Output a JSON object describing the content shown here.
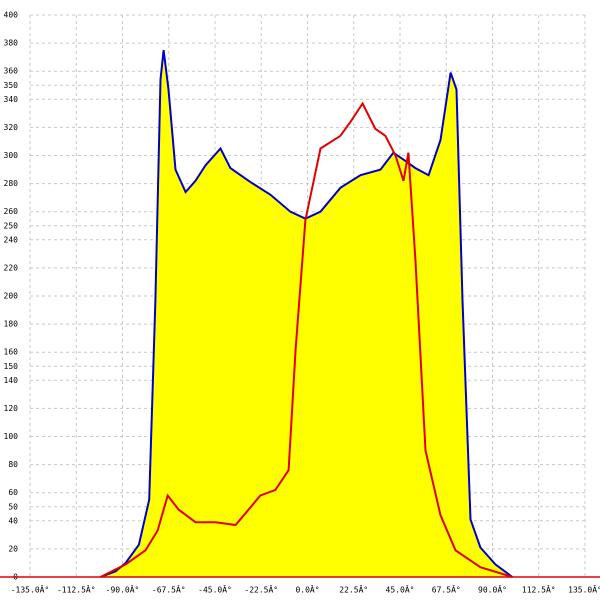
{
  "chart_data": {
    "type": "area",
    "xlim": [
      -135,
      135
    ],
    "xticks": [
      {
        "value": -135,
        "label": "-135.0Â°"
      },
      {
        "value": -112.5,
        "label": "-112.5Â°"
      },
      {
        "value": -90,
        "label": "-90.0Â°"
      },
      {
        "value": -67.5,
        "label": "-67.5Â°"
      },
      {
        "value": -45,
        "label": "-45.0Â°"
      },
      {
        "value": -22.5,
        "label": "-22.5Â°"
      },
      {
        "value": 0,
        "label": "0.0Â°"
      },
      {
        "value": 22.5,
        "label": "22.5Â°"
      },
      {
        "value": 45,
        "label": "45.0Â°"
      },
      {
        "value": 67.5,
        "label": "67.5Â°"
      },
      {
        "value": 90,
        "label": "90.0Â°"
      },
      {
        "value": 112.5,
        "label": "112.5Â°"
      },
      {
        "value": 135,
        "label": "135.0Â°"
      }
    ],
    "ylim": [
      0,
      400
    ],
    "yticks": [
      0,
      20,
      40,
      50,
      60,
      80,
      100,
      120,
      140,
      150,
      160,
      180,
      200,
      220,
      240,
      250,
      260,
      280,
      300,
      320,
      340,
      350,
      360,
      380,
      400
    ],
    "grid": true,
    "axis_color": "#e00000",
    "series": [
      {
        "color": "#0000cc",
        "fill": "#ffff00",
        "x": [
          -100.7,
          -93.4,
          -88.5,
          -82,
          -77,
          -74,
          -71.5,
          -70,
          -67.6,
          -64.2,
          -59.3,
          -54.5,
          -49.6,
          -42.3,
          -37.5,
          -27.7,
          -18,
          -8.3,
          -1,
          6.3,
          16,
          25.8,
          35.5,
          41.8,
          47.7,
          52.5,
          58.9,
          64.7,
          69.6,
          72.5,
          75.4,
          79.3,
          84.1,
          91.4,
          99.7
        ],
        "values": [
          0,
          4,
          10,
          23,
          55,
          197,
          354,
          375,
          347,
          290,
          274,
          282,
          293,
          305,
          291,
          281,
          272,
          260,
          255,
          260,
          277,
          286,
          290,
          302,
          296,
          291,
          286,
          311,
          359,
          347,
          197,
          41,
          21,
          9,
          0
        ]
      },
      {
        "color": "#e00000",
        "x": [
          -100.7,
          -88.5,
          -78.8,
          -72.9,
          -68,
          -62.7,
          -54.5,
          -44.7,
          -35,
          -22.9,
          -15.6,
          -9.2,
          -5.8,
          -1,
          6.3,
          16,
          20.9,
          26.8,
          33,
          37.9,
          42.8,
          46.7,
          49.1,
          52.5,
          57.4,
          64.7,
          72,
          84.1,
          99.7
        ],
        "values": [
          0,
          9,
          19,
          33,
          58,
          48,
          39,
          39,
          37,
          58,
          62,
          76,
          162,
          254,
          305,
          314,
          324,
          337,
          319,
          314,
          300,
          282,
          302,
          226,
          90,
          44,
          19,
          7,
          0
        ]
      }
    ]
  }
}
